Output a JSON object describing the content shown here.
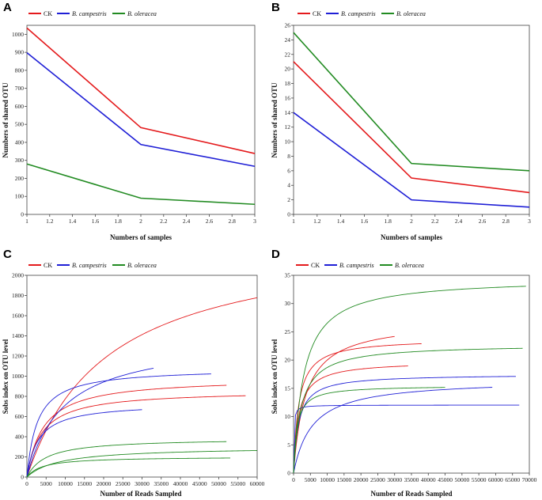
{
  "chart_data": [
    {
      "panel": "A",
      "type": "line",
      "xlabel": "Numbers of samples",
      "ylabel": "Numbers of shared OTU",
      "xlim": [
        1,
        3
      ],
      "ylim": [
        0,
        1050
      ],
      "xticks": [
        "1",
        "1.2",
        "1.4",
        "1.6",
        "1.8",
        "2",
        "2.2",
        "2.4",
        "2.6",
        "2.8",
        "3"
      ],
      "yticks": [
        "0",
        "100",
        "200",
        "300",
        "400",
        "500",
        "600",
        "700",
        "800",
        "900",
        "1000"
      ],
      "x": [
        1,
        2,
        3
      ],
      "series": [
        {
          "name": "CK",
          "color": "#e41a1c",
          "values": [
            1035,
            482,
            338
          ]
        },
        {
          "name": "B. campestris",
          "color": "#1f1fd6",
          "values": [
            898,
            388,
            267
          ]
        },
        {
          "name": "B. oleracea",
          "color": "#228b22",
          "values": [
            280,
            90,
            56
          ]
        }
      ]
    },
    {
      "panel": "B",
      "type": "line",
      "xlabel": "Numbers of samples",
      "ylabel": "Numbers of shared OTU",
      "xlim": [
        1,
        3
      ],
      "ylim": [
        0,
        26
      ],
      "xticks": [
        "1",
        "1.2",
        "1.4",
        "1.6",
        "1.8",
        "2",
        "2.2",
        "2.4",
        "2.6",
        "2.8",
        "3"
      ],
      "yticks": [
        "0",
        "2",
        "4",
        "6",
        "8",
        "10",
        "12",
        "14",
        "16",
        "18",
        "20",
        "22",
        "24",
        "26"
      ],
      "x": [
        1,
        2,
        3
      ],
      "series": [
        {
          "name": "CK",
          "color": "#e41a1c",
          "values": [
            21,
            5,
            3
          ]
        },
        {
          "name": "B. campestris",
          "color": "#1f1fd6",
          "values": [
            14,
            2,
            1
          ]
        },
        {
          "name": "B. oleracea",
          "color": "#228b22",
          "values": [
            25,
            7,
            6
          ]
        }
      ]
    },
    {
      "panel": "C",
      "type": "line",
      "xlabel": "Number of Reads Sampled",
      "ylabel": "Sobs index on OTU level",
      "xlim": [
        0,
        60000
      ],
      "ylim": [
        0,
        2000
      ],
      "xticks": [
        "0",
        "5000",
        "10000",
        "15000",
        "20000",
        "25000",
        "30000",
        "35000",
        "40000",
        "45000",
        "50000",
        "55000",
        "60000"
      ],
      "yticks": [
        "0",
        "200",
        "400",
        "600",
        "800",
        "1000",
        "1200",
        "1400",
        "1600",
        "1800",
        "2000"
      ],
      "curve_model": "saturating: y = max*x/(x+half)",
      "series": [
        {
          "name": "CK",
          "color": "#e41a1c",
          "end": 60000,
          "max": 2400,
          "half": 21000
        },
        {
          "name": "CK",
          "color": "#e41a1c",
          "end": 52000,
          "max": 985,
          "half": 4300
        },
        {
          "name": "CK",
          "color": "#e41a1c",
          "end": 57000,
          "max": 860,
          "half": 3800
        },
        {
          "name": "B. campestris",
          "color": "#1f1fd6",
          "end": 33000,
          "max": 1390,
          "half": 9500
        },
        {
          "name": "B. campestris",
          "color": "#1f1fd6",
          "end": 48000,
          "max": 1080,
          "half": 2700
        },
        {
          "name": "B. campestris",
          "color": "#1f1fd6",
          "end": 30000,
          "max": 735,
          "half": 3000
        },
        {
          "name": "B. oleracea",
          "color": "#228b22",
          "end": 52000,
          "max": 385,
          "half": 5000
        },
        {
          "name": "B. oleracea",
          "color": "#228b22",
          "end": 60000,
          "max": 300,
          "half": 8500
        },
        {
          "name": "B. oleracea",
          "color": "#228b22",
          "end": 53000,
          "max": 203,
          "half": 4000
        }
      ]
    },
    {
      "panel": "D",
      "type": "line",
      "xlabel": "Number of Reads Sampled",
      "ylabel": "Sobs index on OTU level",
      "xlim": [
        0,
        70000
      ],
      "ylim": [
        0,
        35
      ],
      "xticks": [
        "0",
        "5000",
        "10000",
        "15000",
        "20000",
        "25000",
        "30000",
        "35000",
        "40000",
        "45000",
        "50000",
        "55000",
        "60000",
        "65000",
        "70000"
      ],
      "yticks": [
        "0",
        "5",
        "10",
        "15",
        "20",
        "25",
        "30",
        "35"
      ],
      "curve_model": "saturating: y = max*x/(x+half)",
      "series": [
        {
          "name": "CK",
          "color": "#e41a1c",
          "end": 30000,
          "max": 27,
          "half": 3500
        },
        {
          "name": "CK",
          "color": "#e41a1c",
          "end": 38000,
          "max": 23.8,
          "half": 1500
        },
        {
          "name": "CK",
          "color": "#e41a1c",
          "end": 34000,
          "max": 19.8,
          "half": 1500
        },
        {
          "name": "B. campestris",
          "color": "#1f1fd6",
          "end": 66000,
          "max": 17.5,
          "half": 1500
        },
        {
          "name": "B. campestris",
          "color": "#1f1fd6",
          "end": 59000,
          "max": 16.6,
          "half": 5500
        },
        {
          "name": "B. campestris",
          "color": "#1f1fd6",
          "end": 67000,
          "max": 12.05,
          "half": 100
        },
        {
          "name": "B. oleracea",
          "color": "#228b22",
          "end": 69000,
          "max": 34.5,
          "half": 3000
        },
        {
          "name": "B. oleracea",
          "color": "#228b22",
          "end": 68000,
          "max": 22.8,
          "half": 2200
        },
        {
          "name": "B. oleracea",
          "color": "#228b22",
          "end": 45000,
          "max": 15.5,
          "half": 1000
        }
      ]
    }
  ],
  "panels": {
    "A": {
      "label": "A",
      "legend": {
        "ck": "CK",
        "bc": "B. campestris",
        "bo": "B. oleracea"
      }
    },
    "B": {
      "label": "B",
      "legend": {
        "ck": "CK",
        "bc": "B. campestris",
        "bo": "B. oleracea"
      }
    },
    "C": {
      "label": "C",
      "legend": {
        "ck": "CK",
        "bc": "B. campestris",
        "bo": "B. oleracea"
      }
    },
    "D": {
      "label": "D",
      "legend": {
        "ck": "CK",
        "bc": "B. campestris",
        "bo": "B. oleracea"
      }
    }
  }
}
